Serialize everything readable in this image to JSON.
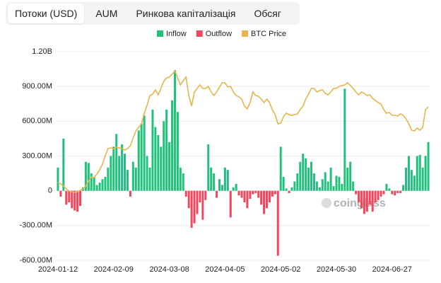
{
  "tabs": [
    "Потоки (USD)",
    "AUM",
    "Ринкова капіталізація",
    "Обсяг"
  ],
  "chart_data": {
    "type": "bar",
    "watermark": "coinglass",
    "categories": [
      "2024-01-12",
      null,
      null,
      null,
      null,
      null,
      null,
      null,
      null,
      null,
      null,
      null,
      null,
      null,
      null,
      null,
      null,
      null,
      null,
      null,
      "2024-02-09",
      null,
      null,
      null,
      null,
      null,
      null,
      null,
      null,
      null,
      null,
      null,
      null,
      null,
      null,
      null,
      null,
      null,
      null,
      null,
      "2024-03-08",
      null,
      null,
      null,
      null,
      null,
      null,
      null,
      null,
      null,
      null,
      null,
      null,
      null,
      null,
      null,
      null,
      null,
      null,
      null,
      "2024-04-05",
      null,
      null,
      null,
      null,
      null,
      null,
      null,
      null,
      null,
      null,
      null,
      null,
      null,
      null,
      null,
      null,
      null,
      null,
      null,
      "2024-05-02",
      null,
      null,
      null,
      null,
      null,
      null,
      null,
      null,
      null,
      null,
      null,
      null,
      null,
      null,
      null,
      null,
      null,
      null,
      null,
      "2024-05-30",
      null,
      null,
      null,
      null,
      null,
      null,
      null,
      null,
      null,
      null,
      null,
      null,
      null,
      null,
      null,
      null,
      null,
      null,
      null,
      "2024-06-27",
      null,
      null,
      null,
      null,
      null,
      null,
      null,
      null,
      null,
      null,
      null,
      null,
      null
    ],
    "series": [
      {
        "name": "Inflow",
        "type": "bar",
        "color": "#1fc17b",
        "values": [
          200000000.0,
          null,
          450000000.0,
          null,
          null,
          null,
          null,
          null,
          null,
          30000000.0,
          250000000.0,
          240000000.0,
          150000000.0,
          120000000.0,
          50000000.0,
          70000000.0,
          100000000.0,
          120000000.0,
          200000000.0,
          300000000.0,
          380000000.0,
          490000000.0,
          300000000.0,
          400000000.0,
          320000000.0,
          180000000.0,
          null,
          250000000.0,
          200000000.0,
          520000000.0,
          580000000.0,
          650000000.0,
          300000000.0,
          200000000.0,
          700000000.0,
          550000000.0,
          480000000.0,
          380000000.0,
          600000000.0,
          700000000.0,
          420000000.0,
          780000000.0,
          1040000000.0,
          680000000.0,
          200000000.0,
          150000000.0,
          null,
          null,
          null,
          null,
          null,
          null,
          null,
          null,
          400000000.0,
          200000000.0,
          150000000.0,
          null,
          100000000.0,
          50000000.0,
          200000000.0,
          180000000.0,
          null,
          30000000.0,
          60000000.0,
          null,
          null,
          null,
          null,
          null,
          null,
          null,
          null,
          null,
          null,
          null,
          null,
          null,
          null,
          null,
          380000000.0,
          120000000.0,
          20000000.0,
          null,
          30000000.0,
          80000000.0,
          150000000.0,
          250000000.0,
          320000000.0,
          280000000.0,
          200000000.0,
          250000000.0,
          150000000.0,
          80000000.0,
          30000000.0,
          100000000.0,
          160000000.0,
          80000000.0,
          200000000.0,
          40000000.0,
          130000000.0,
          120000000.0,
          60000000.0,
          880000000.0,
          200000000.0,
          250000000.0,
          80000000.0,
          null,
          null,
          null,
          null,
          null,
          null,
          null,
          null,
          null,
          null,
          null,
          60000000.0,
          20000000.0,
          null,
          null,
          null,
          null,
          50000000.0,
          200000000.0,
          300000000.0,
          180000000.0,
          130000000.0,
          300000000.0,
          310000000.0,
          200000000.0,
          300000000.0,
          420000000.0
        ]
      },
      {
        "name": "Outflow",
        "type": "bar",
        "color": "#ee4860",
        "values": [
          null,
          -50000000.0,
          null,
          -120000000.0,
          -100000000.0,
          -150000000.0,
          -170000000.0,
          -180000000.0,
          -130000000.0,
          null,
          null,
          null,
          null,
          null,
          null,
          null,
          null,
          null,
          null,
          null,
          null,
          null,
          null,
          null,
          null,
          null,
          -50000000.0,
          null,
          null,
          null,
          null,
          null,
          null,
          null,
          null,
          null,
          null,
          null,
          null,
          null,
          null,
          null,
          null,
          null,
          null,
          null,
          -50000000.0,
          -150000000.0,
          -320000000.0,
          -280000000.0,
          -200000000.0,
          -100000000.0,
          -250000000.0,
          -80000000.0,
          null,
          null,
          null,
          -60000000.0,
          null,
          null,
          null,
          null,
          -230000000.0,
          null,
          null,
          -40000000.0,
          -60000000.0,
          -100000000.0,
          -150000000.0,
          -70000000.0,
          -30000000.0,
          -20000000.0,
          -60000000.0,
          -120000000.0,
          -200000000.0,
          -150000000.0,
          -100000000.0,
          -50000000.0,
          -30000000.0,
          -560000000.0,
          null,
          null,
          null,
          -20000000.0,
          null,
          null,
          null,
          null,
          null,
          null,
          null,
          null,
          null,
          null,
          null,
          null,
          null,
          null,
          null,
          null,
          null,
          null,
          null,
          null,
          null,
          null,
          null,
          -30000000.0,
          -100000000.0,
          -150000000.0,
          -200000000.0,
          -180000000.0,
          -120000000.0,
          -180000000.0,
          -100000000.0,
          -80000000.0,
          -50000000.0,
          -30000000.0,
          null,
          null,
          -30000000.0,
          -40000000.0,
          -20000000.0,
          -20000000.0,
          null,
          null,
          null,
          null,
          null,
          null,
          null,
          null,
          null,
          null
        ]
      },
      {
        "name": "BTC Price",
        "type": "line",
        "axis": "y2",
        "color": "#e8b44c",
        "values": [
          42000,
          41600,
          41000,
          40200,
          39600,
          39300,
          39200,
          39400,
          39800,
          40200,
          41000,
          42400,
          43600,
          43400,
          44400,
          45600,
          47200,
          49600,
          51600,
          51800,
          51500,
          52000,
          51800,
          51600,
          51200,
          51600,
          52400,
          54600,
          56600,
          57600,
          58600,
          61600,
          63800,
          66600,
          67000,
          68200,
          66800,
          68600,
          70600,
          71600,
          71800,
          72600,
          73600,
          71600,
          69600,
          70800,
          71800,
          66600,
          63600,
          67600,
          68600,
          69600,
          68600,
          68600,
          69200,
          67600,
          66600,
          67600,
          69000,
          70200,
          70200,
          69000,
          69200,
          67600,
          66600,
          66200,
          65600,
          63600,
          62800,
          64600,
          67600,
          66600,
          66400,
          65600,
          64600,
          65600,
          64600,
          62600,
          61200,
          58600,
          58800,
          60600,
          61600,
          61200,
          61000,
          61200,
          61400,
          62600,
          63600,
          65600,
          67000,
          68600,
          68600,
          67600,
          68000,
          68200,
          67200,
          66800,
          67600,
          68600,
          68600,
          69200,
          69400,
          69600,
          70200,
          69400,
          68600,
          67600,
          66800,
          67600,
          67200,
          66600,
          66800,
          65800,
          65200,
          64600,
          64200,
          62600,
          61600,
          61800,
          61000,
          61000,
          60800,
          61400,
          61000,
          60000,
          58600,
          56800,
          56600,
          57400,
          56800,
          57600,
          62600,
          63400
        ]
      }
    ],
    "ylim": [
      -600000000.0,
      1200000000.0
    ],
    "yticks": [
      {
        "value": -600000000.0,
        "label": "-600.00M"
      },
      {
        "value": -300000000.0,
        "label": "-300.00M"
      },
      0,
      {
        "value": 300000000.0,
        "label": "300.00M"
      },
      {
        "value": 600000000.0,
        "label": "600.00M"
      },
      {
        "value": 900000000.0,
        "label": "900.00M"
      },
      {
        "value": 1200000000.0,
        "label": "1.20B"
      }
    ],
    "y2lim": [
      20000,
      79000
    ],
    "grid": true,
    "legend": "top"
  }
}
